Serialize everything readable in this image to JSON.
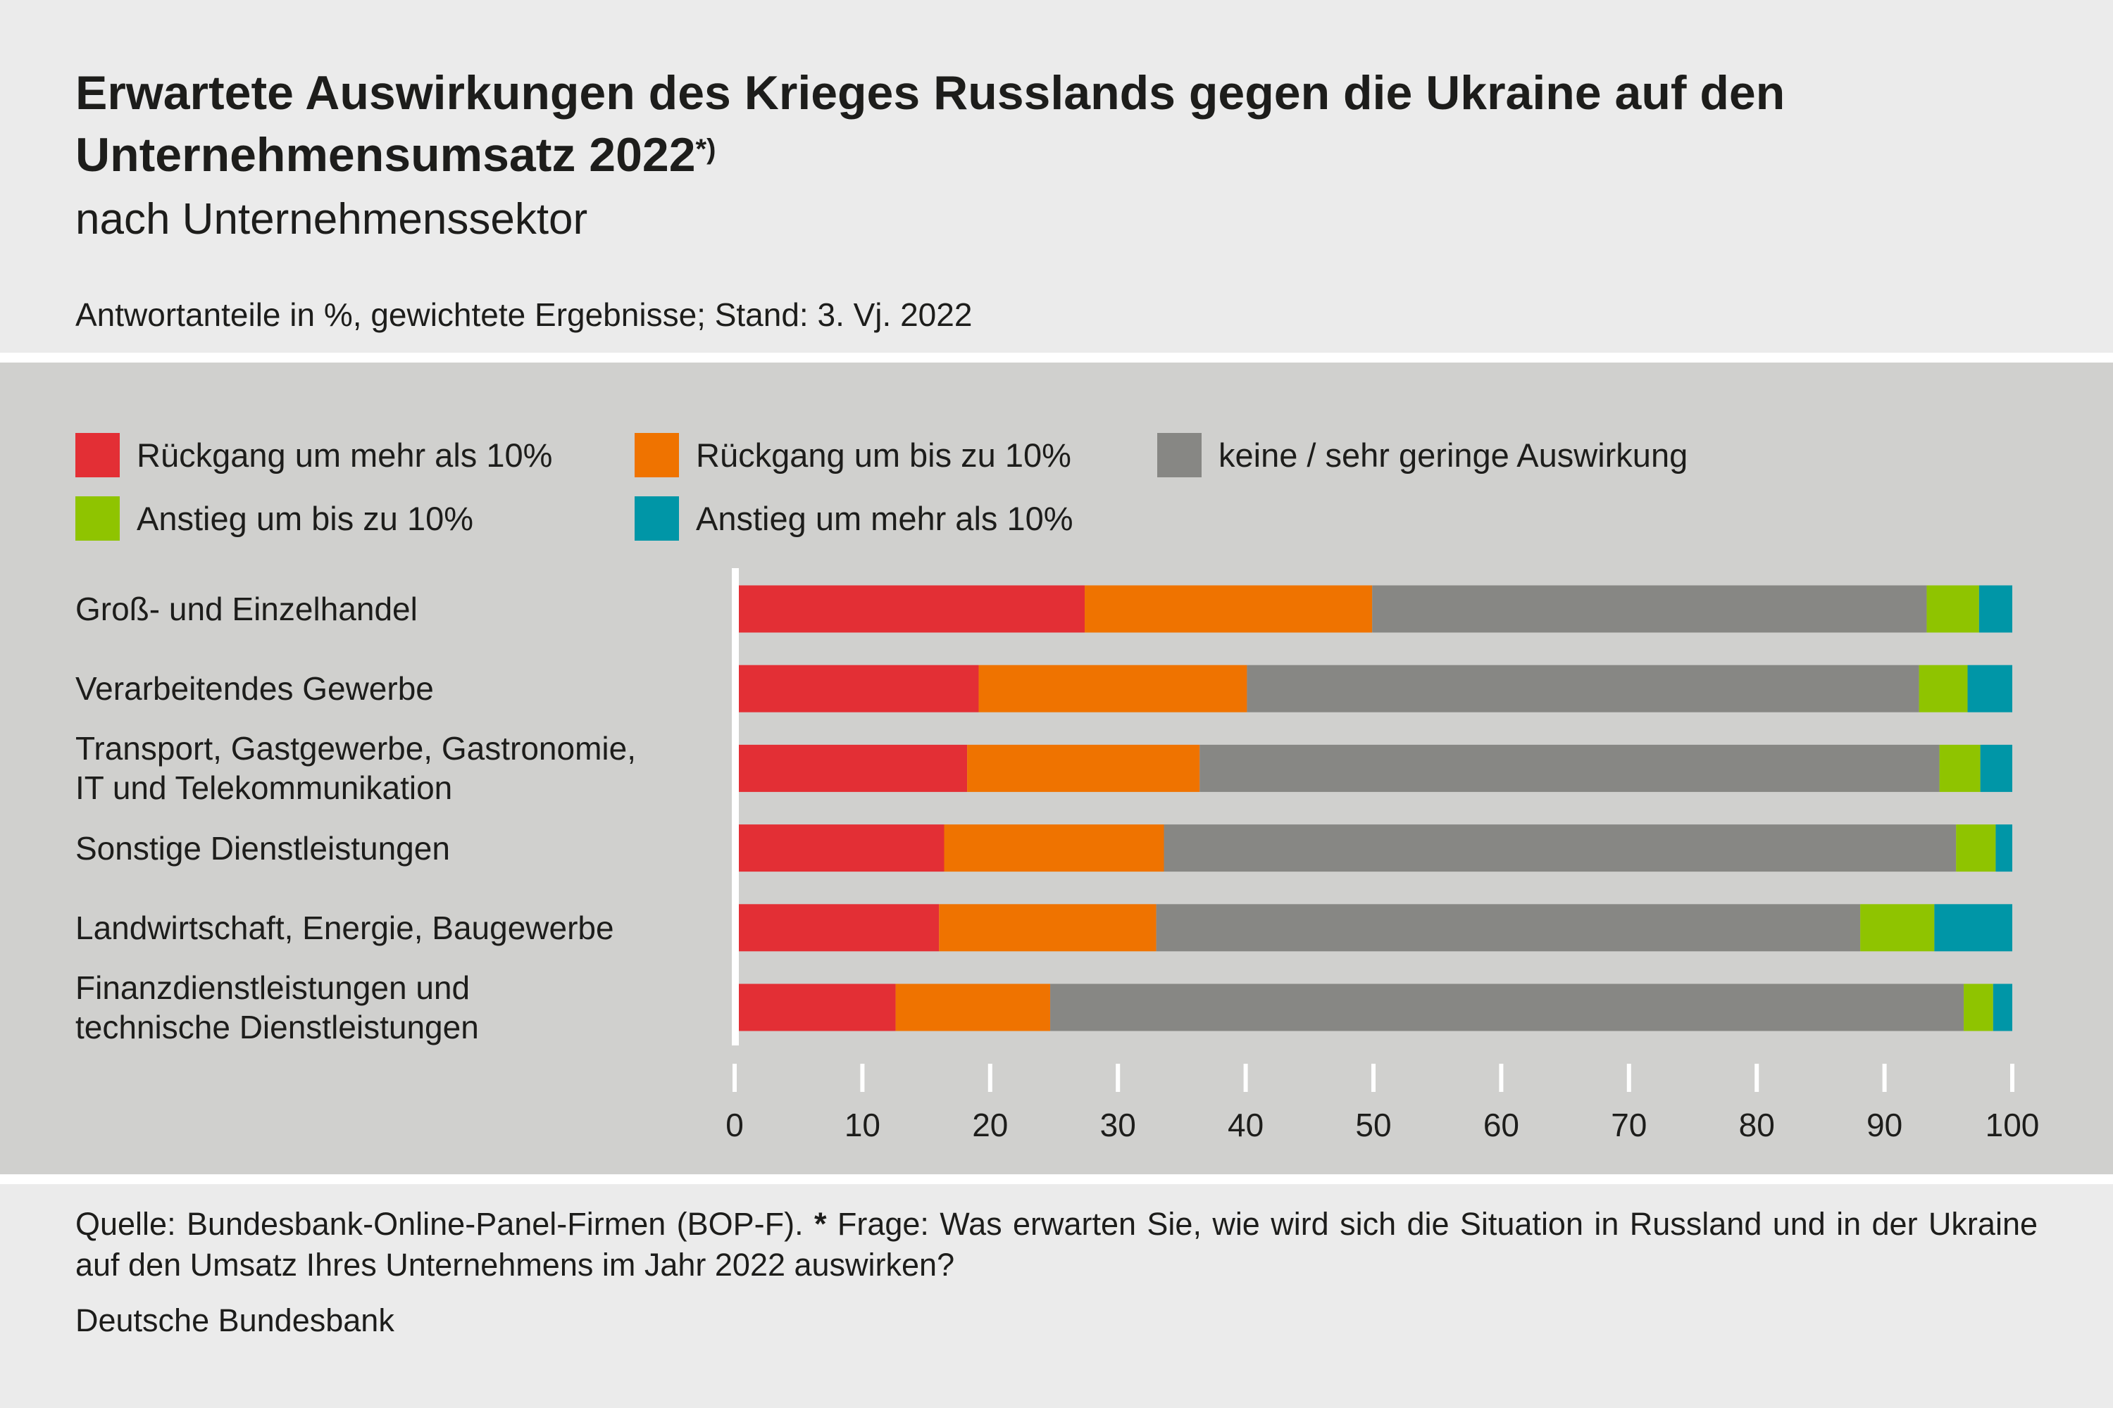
{
  "header": {
    "title_line1": "Erwartete Auswirkungen des Krieges Russlands gegen die Ukraine auf den",
    "title_line2": "Unternehmensumsatz 2022",
    "title_footnote_mark": "*)",
    "subtitle": "nach Unternehmenssektor",
    "note": "Antwortanteile in %, gewichtete Ergebnisse; Stand: 3. Vj. 2022"
  },
  "chart_data": {
    "type": "bar",
    "orientation": "horizontal",
    "stacked": true,
    "categories": [
      [
        "Groß- und Einzelhandel"
      ],
      [
        "Verarbeitendes Gewerbe"
      ],
      [
        "Transport, Gastgewerbe, Gastronomie,",
        "IT und Telekommunikation"
      ],
      [
        "Sonstige Dienstleistungen"
      ],
      [
        "Landwirtschaft, Energie, Baugewerbe"
      ],
      [
        "Finanzdienstleistungen und",
        "technische Dienstleistungen"
      ]
    ],
    "series": [
      {
        "name": "Rückgang um mehr als 10%",
        "color": "#e32f35",
        "values": [
          27.4,
          19.1,
          18.2,
          16.4,
          16.0,
          12.6
        ]
      },
      {
        "name": "Rückgang um bis zu 10%",
        "color": "#ef7300",
        "values": [
          22.5,
          21.0,
          18.2,
          17.2,
          17.0,
          12.1
        ]
      },
      {
        "name": "keine / sehr geringe Auswirkung",
        "color": "#878784",
        "values": [
          43.4,
          52.6,
          57.9,
          62.0,
          55.1,
          71.5
        ]
      },
      {
        "name": "Anstieg um bis zu 10%",
        "color": "#8fc400",
        "values": [
          4.1,
          3.8,
          3.2,
          3.1,
          5.8,
          2.3
        ]
      },
      {
        "name": "Anstieg um mehr als 10%",
        "color": "#0096a7",
        "values": [
          2.6,
          3.5,
          2.5,
          1.3,
          6.1,
          1.5
        ]
      }
    ],
    "xlim": [
      0,
      100
    ],
    "xticks": [
      "0",
      "10",
      "20",
      "30",
      "40",
      "50",
      "60",
      "70",
      "80",
      "90",
      "100"
    ],
    "grid": false,
    "legend_position": "top"
  },
  "footer": {
    "source": "Quelle: Bundesbank-Online-Panel-Firmen (BOP-F). ",
    "footnote_mark": "*",
    "footnote_text": " Frage: Was erwarten Sie, wie wird sich die Situation in Russland und in der Ukraine auf den Umsatz Ihres Unternehmens im Jahr 2022 auswirken?",
    "organization": "Deutsche Bundesbank"
  }
}
